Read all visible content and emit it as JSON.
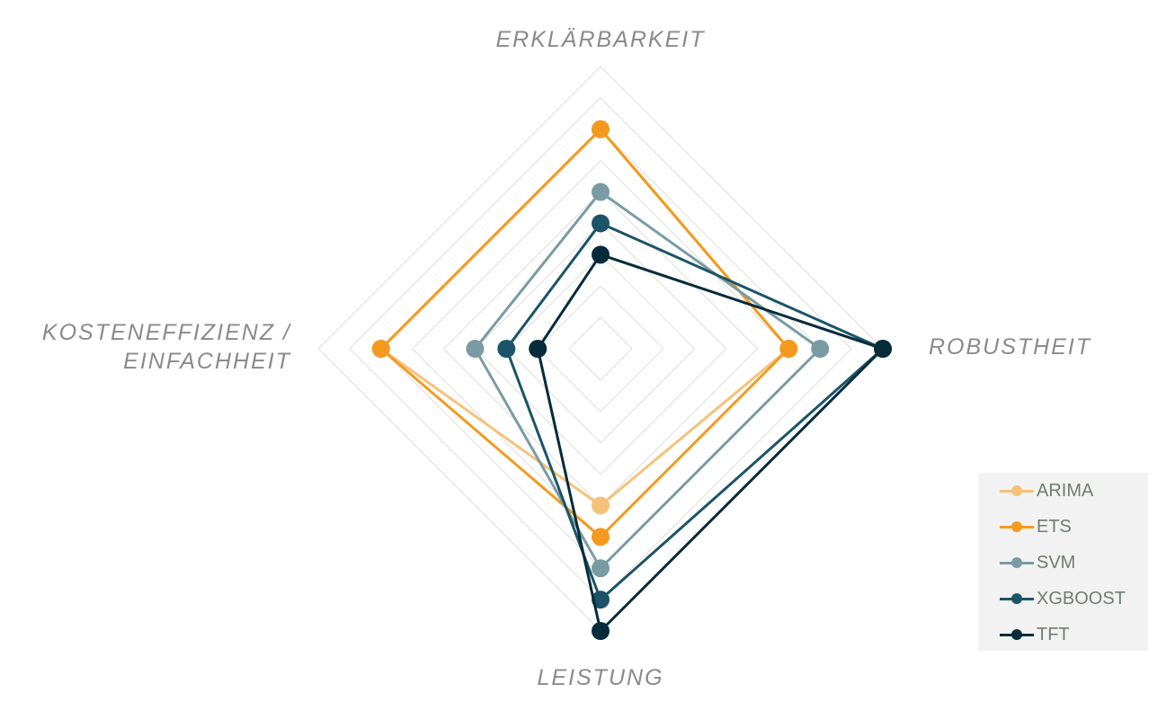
{
  "chart_data": {
    "type": "radar",
    "axes": [
      "ERKLÄRBARKEIT",
      "ROBUSTHEIT",
      "LEISTUNG",
      "KOSTENEFFIZIENZ / EINFACHHEIT"
    ],
    "axis_label_lines": [
      [
        "ERKLÄRBARKEIT"
      ],
      [
        "ROBUSTHEIT"
      ],
      [
        "LEISTUNG"
      ],
      [
        "KOSTENEFFIZIENZ /",
        "EINFACHHEIT"
      ]
    ],
    "range": [
      0,
      9
    ],
    "grid": true,
    "legend_placement": "bottom-right",
    "series": [
      {
        "name": "ARIMA",
        "values": [
          7,
          6,
          5,
          7
        ],
        "color": "#f5c27a"
      },
      {
        "name": "ETS",
        "values": [
          7,
          6,
          6,
          7
        ],
        "color": "#f39a1e"
      },
      {
        "name": "SVM",
        "values": [
          5,
          7,
          7,
          4
        ],
        "color": "#7a9ba3"
      },
      {
        "name": "XGBOOST",
        "values": [
          4,
          9,
          8,
          3
        ],
        "color": "#1b5468"
      },
      {
        "name": "TFT",
        "values": [
          3,
          9,
          9,
          2
        ],
        "color": "#062b3a"
      }
    ]
  }
}
